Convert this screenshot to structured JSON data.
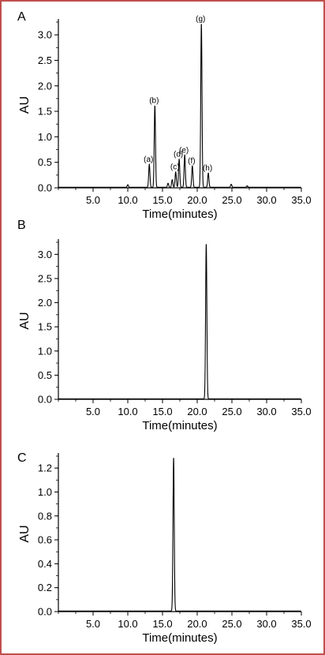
{
  "frame": {
    "border_color": "#c0504d"
  },
  "chart_data": [
    {
      "type": "line",
      "panel_label": "A",
      "xlabel": "Time(minutes)",
      "ylabel": "AU",
      "xlim": [
        0,
        35
      ],
      "ylim": [
        0,
        3.25
      ],
      "x_ticks": [
        5,
        10,
        15,
        20,
        25,
        30,
        35
      ],
      "x_tick_labels": [
        "5.0",
        "10.0",
        "15.0",
        "20.0",
        "25.0",
        "30.0",
        "35.0"
      ],
      "y_ticks": [
        0,
        0.5,
        1,
        1.5,
        2,
        2.5,
        3
      ],
      "y_tick_labels": [
        "0.0",
        "0.5",
        "1.0",
        "1.5",
        "2.0",
        "2.5",
        "3.0"
      ],
      "grid": false,
      "baseline": 0.01,
      "peaks": [
        {
          "x": 10.0,
          "y": 0.05
        },
        {
          "x": 13.1,
          "y": 0.45,
          "label": "(a)"
        },
        {
          "x": 13.9,
          "y": 1.6,
          "label": "(b)"
        },
        {
          "x": 15.8,
          "y": 0.08
        },
        {
          "x": 16.4,
          "y": 0.15
        },
        {
          "x": 16.9,
          "y": 0.3,
          "label": "(c)"
        },
        {
          "x": 17.4,
          "y": 0.55,
          "label": "(d)"
        },
        {
          "x": 18.2,
          "y": 0.63,
          "label": "(e)"
        },
        {
          "x": 19.3,
          "y": 0.42,
          "label": "(f)"
        },
        {
          "x": 20.6,
          "y": 3.2,
          "label": "(g)"
        },
        {
          "x": 21.6,
          "y": 0.28,
          "label": "(h)"
        },
        {
          "x": 24.9,
          "y": 0.06
        },
        {
          "x": 27.2,
          "y": 0.03
        }
      ]
    },
    {
      "type": "line",
      "panel_label": "B",
      "xlabel": "Time(minutes)",
      "ylabel": "AU",
      "xlim": [
        0,
        35
      ],
      "ylim": [
        0,
        3.25
      ],
      "x_ticks": [
        5,
        10,
        15,
        20,
        25,
        30,
        35
      ],
      "x_tick_labels": [
        "5.0",
        "10.0",
        "15.0",
        "20.0",
        "25.0",
        "30.0",
        "35.0"
      ],
      "y_ticks": [
        0,
        0.5,
        1,
        1.5,
        2,
        2.5,
        3
      ],
      "y_tick_labels": [
        "0.0",
        "0.5",
        "1.0",
        "1.5",
        "2.0",
        "2.5",
        "3.0"
      ],
      "grid": false,
      "baseline": 0.01,
      "peaks": [
        {
          "x": 21.3,
          "y": 3.2
        }
      ]
    },
    {
      "type": "line",
      "panel_label": "C",
      "xlabel": "Time(minutes)",
      "ylabel": "AU",
      "xlim": [
        0,
        35
      ],
      "ylim": [
        0,
        1.3
      ],
      "x_ticks": [
        5,
        10,
        15,
        20,
        25,
        30,
        35
      ],
      "x_tick_labels": [
        "5.0",
        "10.0",
        "15.0",
        "20.0",
        "25.0",
        "30.0",
        "35.0"
      ],
      "y_ticks": [
        0,
        0.2,
        0.4,
        0.6,
        0.8,
        1,
        1.2
      ],
      "y_tick_labels": [
        "0.0",
        "0.2",
        "0.4",
        "0.6",
        "0.8",
        "1.0",
        "1.2"
      ],
      "grid": false,
      "baseline": 0.005,
      "peaks": [
        {
          "x": 16.6,
          "y": 1.28
        }
      ]
    }
  ]
}
